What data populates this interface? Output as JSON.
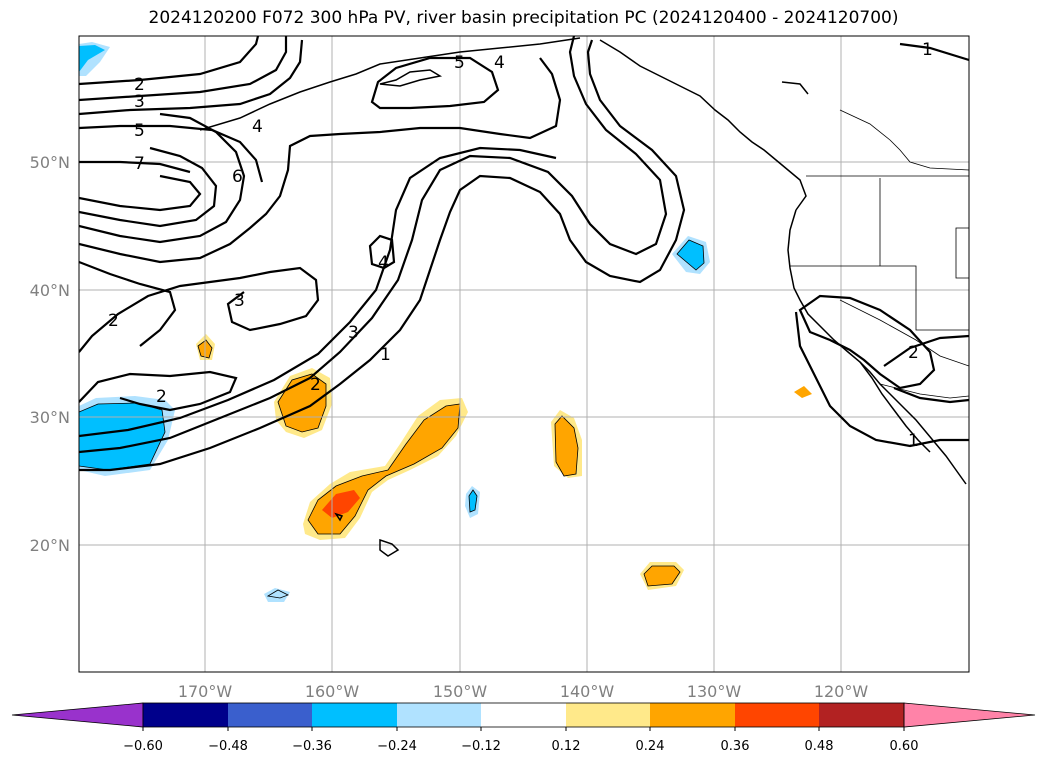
{
  "title": "2024120200 F072 300 hPa PV, river basin precipitation PC (2024120400 - 2024120700)",
  "map": {
    "region": "North Pacific / western North America",
    "lat_labels": [
      "50°N",
      "40°N",
      "30°N",
      "20°N"
    ],
    "lon_labels": [
      "170°W",
      "160°W",
      "150°W",
      "140°W",
      "130°W",
      "120°W"
    ],
    "pv_contour_labels": [
      "2",
      "3",
      "5",
      "7",
      "4",
      "6",
      "5",
      "4",
      "1",
      "4",
      "3",
      "2",
      "3",
      "1",
      "2",
      "2",
      "2",
      "1"
    ],
    "fill_colors": {
      "neg_0.24": "#00bfff",
      "neg_0.12": "#b0e2ff",
      "pos_0.12": "#ffe98a",
      "pos_0.24": "#ffa500",
      "pos_0.36": "#ff4500"
    }
  },
  "colorbar": {
    "levels": [
      "−0.60",
      "−0.48",
      "−0.36",
      "−0.24",
      "−0.12",
      "0.12",
      "0.24",
      "0.36",
      "0.48",
      "0.60"
    ],
    "colors": [
      "#9932cc",
      "#00008b",
      "#3a5fcd",
      "#00bfff",
      "#b0e2ff",
      "#ffffff",
      "#ffe98a",
      "#ffa500",
      "#ff4500",
      "#b22222",
      "#ff83a8",
      "#ff83a8"
    ],
    "extend_low_color": "#9932cc",
    "extend_high_color": "#ff83a8"
  }
}
